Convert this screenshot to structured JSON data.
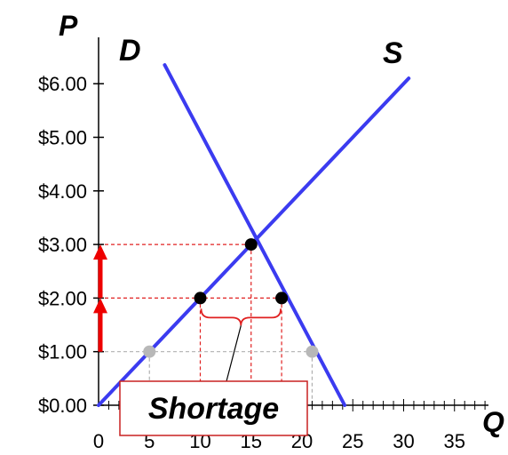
{
  "chart_data": {
    "type": "line",
    "title": "",
    "xlabel": "Q",
    "ylabel": "P",
    "xlim": [
      0,
      38
    ],
    "ylim": [
      0,
      6.5
    ],
    "x_ticks": [
      "0",
      "5",
      "10",
      "15",
      "20",
      "25",
      "30",
      "35"
    ],
    "y_ticks": [
      "$0.00",
      "$1.00",
      "$2.00",
      "$3.00",
      "$4.00",
      "$5.00",
      "$6.00"
    ],
    "grid": false,
    "series": [
      {
        "name": "D",
        "color": "#3b3bf0",
        "points": [
          [
            6.5,
            6.35
          ],
          [
            24.2,
            0
          ]
        ]
      },
      {
        "name": "S",
        "color": "#3b3bf0",
        "points": [
          [
            0,
            0
          ],
          [
            30.5,
            6.1
          ]
        ]
      }
    ],
    "equilibrium": {
      "x": 15,
      "y": 3.0
    },
    "price_ceiling_points": [
      {
        "x": 10,
        "y": 2.0
      },
      {
        "x": 18,
        "y": 2.0
      }
    ],
    "low_price_points": [
      {
        "x": 5,
        "y": 1.0
      },
      {
        "x": 21,
        "y": 1.0
      }
    ],
    "arrows": [
      {
        "from": 1.0,
        "to": 2.0,
        "color": "#ee0000"
      },
      {
        "from": 2.0,
        "to": 3.0,
        "color": "#ee0000"
      }
    ],
    "annotation": {
      "text": "Shortage",
      "range": [
        10,
        18
      ],
      "at_price": 2.0
    }
  },
  "colors": {
    "curve": "#3b3bf0",
    "point": "#000000",
    "faded_point": "#b8b8b8",
    "dashed_red": "#e02020",
    "dashed_gray": "#b0b0b0",
    "arrow": "#ee0000",
    "box_border": "#c82020"
  }
}
